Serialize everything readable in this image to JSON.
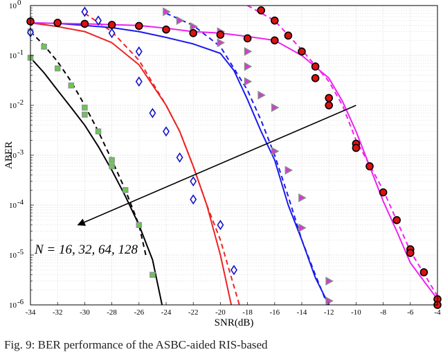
{
  "chart_data": {
    "type": "line",
    "title": "",
    "xlabel": "SNR(dB)",
    "ylabel": "ABER",
    "xlim": [
      -34,
      -4
    ],
    "ylim_log10": [
      -6,
      0
    ],
    "y_scale": "log",
    "grid": true,
    "x_ticks": [
      "-34",
      "-32",
      "-30",
      "-28",
      "-26",
      "-24",
      "-22",
      "-20",
      "-18",
      "-16",
      "-14",
      "-12",
      "-10",
      "-8",
      "-6",
      "-4"
    ],
    "y_ticks": [
      {
        "base": "10",
        "exp": "0"
      },
      {
        "base": "10",
        "exp": "-1"
      },
      {
        "base": "10",
        "exp": "-2"
      },
      {
        "base": "10",
        "exp": "-3"
      },
      {
        "base": "10",
        "exp": "-4"
      },
      {
        "base": "10",
        "exp": "-5"
      },
      {
        "base": "10",
        "exp": "-6"
      }
    ],
    "annotation": "N = 16, 32, 64, 128",
    "arrow": {
      "from": [
        -10,
        0.01
      ],
      "to": [
        -30.5,
        4e-05
      ]
    },
    "series": [
      {
        "color": "#000000",
        "marker": "square",
        "marker_fill": "#66cc44",
        "marker_edge": "#8a9a90",
        "solid": [
          [
            -34,
            0.09
          ],
          [
            -33,
            0.045
          ],
          [
            -32,
            0.02
          ],
          [
            -31,
            0.009
          ],
          [
            -30,
            0.004
          ],
          [
            -29,
            0.0015
          ],
          [
            -28,
            0.0005
          ],
          [
            -27,
            0.00015
          ],
          [
            -26,
            4e-05
          ],
          [
            -25,
            8e-06
          ],
          [
            -24.3,
            1e-06
          ]
        ],
        "dashed": [
          [
            -34,
            0.3
          ],
          [
            -33,
            0.16
          ],
          [
            -32,
            0.075
          ],
          [
            -31,
            0.03
          ],
          [
            -30,
            0.01
          ],
          [
            -29,
            0.003
          ],
          [
            -28,
            0.0008
          ],
          [
            -27,
            0.0002
          ],
          [
            -26,
            4e-05
          ],
          [
            -25.5,
            1e-05
          ]
        ],
        "markers": [
          [
            -34,
            0.3
          ],
          [
            -34,
            0.09
          ],
          [
            -33,
            0.15
          ],
          [
            -32,
            0.055
          ],
          [
            -31,
            0.025
          ],
          [
            -30,
            0.009
          ],
          [
            -30,
            0.0065
          ],
          [
            -29,
            0.003
          ],
          [
            -28,
            0.0008
          ],
          [
            -28,
            0.0006
          ],
          [
            -27,
            0.0002
          ],
          [
            -26,
            4e-05
          ],
          [
            -25,
            4e-06
          ]
        ]
      },
      {
        "color": "#ee2222",
        "marker": "diamond",
        "marker_fill": "#ffffff",
        "marker_edge": "#1111cc",
        "solid": [
          [
            -34,
            0.45
          ],
          [
            -32,
            0.38
          ],
          [
            -30,
            0.3
          ],
          [
            -28,
            0.18
          ],
          [
            -26,
            0.065
          ],
          [
            -24,
            0.01
          ],
          [
            -23,
            0.003
          ],
          [
            -22,
            0.0006
          ],
          [
            -21,
            0.0001
          ],
          [
            -20,
            1e-05
          ],
          [
            -19.2,
            1e-06
          ]
        ],
        "dashed": [
          [
            -30,
            0.7
          ],
          [
            -28,
            0.3
          ],
          [
            -26,
            0.08
          ],
          [
            -24,
            0.01
          ],
          [
            -23,
            0.003
          ],
          [
            -22,
            0.0006
          ],
          [
            -21,
            0.0001
          ],
          [
            -20,
            2e-05
          ],
          [
            -18.6,
            1e-06
          ]
        ],
        "markers": [
          [
            -34,
            0.29
          ],
          [
            -30,
            0.75
          ],
          [
            -29,
            0.5
          ],
          [
            -28,
            0.28
          ],
          [
            -26,
            0.12
          ],
          [
            -26,
            0.03
          ],
          [
            -25,
            0.007
          ],
          [
            -24,
            0.003
          ],
          [
            -23,
            0.0009
          ],
          [
            -22,
            0.0003
          ],
          [
            -22,
            0.00013
          ],
          [
            -20,
            4e-05
          ],
          [
            -19,
            5e-06
          ]
        ]
      },
      {
        "color": "#1a1aee",
        "marker": "triangle-right",
        "marker_fill": "#dd33dd",
        "marker_edge": "#888888",
        "solid": [
          [
            -34,
            0.45
          ],
          [
            -32,
            0.44
          ],
          [
            -30,
            0.4
          ],
          [
            -28,
            0.36
          ],
          [
            -26,
            0.3
          ],
          [
            -24,
            0.23
          ],
          [
            -22,
            0.17
          ],
          [
            -20,
            0.11
          ],
          [
            -19,
            0.05
          ],
          [
            -18,
            0.013
          ],
          [
            -17,
            0.003
          ],
          [
            -16,
            0.0008
          ],
          [
            -15,
            0.0001
          ],
          [
            -14,
            2e-05
          ],
          [
            -13,
            3.5e-06
          ],
          [
            -12,
            1e-06
          ]
        ],
        "dashed": [
          [
            -24,
            0.7
          ],
          [
            -22,
            0.4
          ],
          [
            -20,
            0.15
          ],
          [
            -18,
            0.02
          ],
          [
            -17,
            0.005
          ],
          [
            -16,
            0.001
          ],
          [
            -15,
            0.00015
          ],
          [
            -14,
            2e-05
          ],
          [
            -13,
            4e-06
          ],
          [
            -12.1,
            1e-06
          ]
        ],
        "markers": [
          [
            -24,
            0.75
          ],
          [
            -23,
            0.5
          ],
          [
            -22,
            0.38
          ],
          [
            -20,
            0.3
          ],
          [
            -20,
            0.18
          ],
          [
            -18,
            0.12
          ],
          [
            -18,
            0.06
          ],
          [
            -18,
            0.03
          ],
          [
            -17,
            0.016
          ],
          [
            -16,
            0.009
          ],
          [
            -16,
            0.0012
          ],
          [
            -15,
            0.0005
          ],
          [
            -14,
            0.00014
          ],
          [
            -14,
            3.5e-05
          ],
          [
            -12,
            3e-06
          ],
          [
            -12,
            1.2e-06
          ]
        ]
      },
      {
        "color": "#ee22ee",
        "marker": "circle",
        "marker_fill": "#dd1111",
        "marker_edge": "#000000",
        "solid": [
          [
            -34,
            0.45
          ],
          [
            -30,
            0.43
          ],
          [
            -26,
            0.4
          ],
          [
            -24,
            0.35
          ],
          [
            -22,
            0.3
          ],
          [
            -20,
            0.28
          ],
          [
            -18,
            0.24
          ],
          [
            -16,
            0.2
          ],
          [
            -14,
            0.1
          ],
          [
            -12,
            0.035
          ],
          [
            -11,
            0.012
          ],
          [
            -10,
            0.003
          ],
          [
            -9,
            0.0006
          ],
          [
            -8,
            0.00012
          ],
          [
            -7,
            3e-05
          ],
          [
            -6,
            7e-06
          ],
          [
            -5,
            3e-06
          ],
          [
            -4,
            1.3e-06
          ]
        ],
        "dashed": [
          [
            -18,
            1.0
          ],
          [
            -16,
            0.5
          ],
          [
            -14,
            0.13
          ],
          [
            -12,
            0.03
          ],
          [
            -11,
            0.01
          ],
          [
            -10,
            0.002
          ],
          [
            -8,
            0.0002
          ],
          [
            -6,
            1.2e-05
          ],
          [
            -4,
            1.5e-06
          ]
        ],
        "markers": [
          [
            -34,
            0.48
          ],
          [
            -32,
            0.45
          ],
          [
            -30,
            0.43
          ],
          [
            -28,
            0.41
          ],
          [
            -26,
            0.39
          ],
          [
            -24,
            0.33
          ],
          [
            -22,
            0.28
          ],
          [
            -20,
            0.26
          ],
          [
            -18,
            0.22
          ],
          [
            -16,
            0.2
          ],
          [
            -17,
            0.8
          ],
          [
            -16,
            0.5
          ],
          [
            -15,
            0.25
          ],
          [
            -14,
            0.12
          ],
          [
            -13,
            0.06
          ],
          [
            -13,
            0.035
          ],
          [
            -12,
            0.014
          ],
          [
            -12,
            0.01
          ],
          [
            -10,
            0.0017
          ],
          [
            -10,
            0.0014
          ],
          [
            -9,
            0.0006
          ],
          [
            -8,
            0.00018
          ],
          [
            -7,
            5e-05
          ],
          [
            -6,
            1.3e-05
          ],
          [
            -6,
            1.1e-05
          ],
          [
            -5,
            4.5e-06
          ],
          [
            -4,
            1.3e-06
          ],
          [
            -4,
            1e-06
          ]
        ]
      }
    ]
  },
  "caption": "Fig. 9: BER performance of the ASBC-aided RIS-based"
}
